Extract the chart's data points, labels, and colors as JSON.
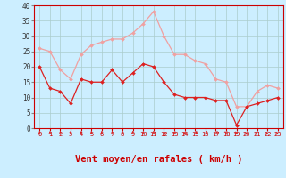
{
  "x": [
    0,
    1,
    2,
    3,
    4,
    5,
    6,
    7,
    8,
    9,
    10,
    11,
    12,
    13,
    14,
    15,
    16,
    17,
    18,
    19,
    20,
    21,
    22,
    23
  ],
  "vent_moyen": [
    20,
    13,
    12,
    8,
    16,
    15,
    15,
    19,
    15,
    18,
    21,
    20,
    15,
    11,
    10,
    10,
    10,
    9,
    9,
    1,
    7,
    8,
    9,
    10
  ],
  "rafales": [
    26,
    25,
    19,
    16,
    24,
    27,
    28,
    29,
    29,
    31,
    34,
    38,
    30,
    24,
    24,
    22,
    21,
    16,
    15,
    7,
    7,
    12,
    14,
    13
  ],
  "color_moyen": "#dd2020",
  "color_rafales": "#f0a0a0",
  "bg_color": "#cceeff",
  "grid_color": "#aacccc",
  "xlabel": "Vent moyen/en rafales ( km/h )",
  "ylim": [
    0,
    40
  ],
  "yticks": [
    0,
    5,
    10,
    15,
    20,
    25,
    30,
    35,
    40
  ],
  "arrow_directions": [
    180,
    180,
    180,
    180,
    180,
    180,
    180,
    180,
    180,
    180,
    180,
    180,
    225,
    270,
    270,
    315,
    315,
    315,
    0,
    90,
    135,
    135,
    135,
    135
  ]
}
